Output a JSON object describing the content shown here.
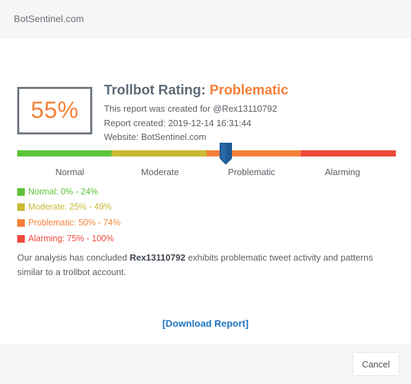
{
  "header": {
    "title": "BotSentinel.com"
  },
  "report": {
    "score": "55%",
    "rating_label": "Trollbot Rating:",
    "rating_value": "Problematic",
    "created_for": "This report was created for @Rex13110792",
    "created_at": "Report created: 2019-12-14 16:31:44",
    "website": "Website: BotSentinel.com"
  },
  "scale": {
    "score_fraction": 0.55,
    "segments": [
      {
        "label": "Normal",
        "color": "#5cc43a"
      },
      {
        "label": "Moderate",
        "color": "#c9b933"
      },
      {
        "label": "Problematic",
        "color": "#f5813a"
      },
      {
        "label": "Alarming",
        "color": "#ef4a3c"
      }
    ],
    "marker_color": "#1e5b96"
  },
  "legend": [
    {
      "text": "Normal: 0% - 24%",
      "color": "#5cc43a"
    },
    {
      "text": "Moderate: 25% - 49%",
      "color": "#c9b933"
    },
    {
      "text": "Problematic: 50% - 74%",
      "color": "#f5813a"
    },
    {
      "text": "Alarming: 75% - 100%",
      "color": "#ef4a3c"
    }
  ],
  "analysis": {
    "prefix": "Our analysis has concluded",
    "account": "Rex13110792",
    "suffix": "exhibits problematic tweet activity and patterns similar to a trollbot account."
  },
  "actions": {
    "download_label": "[Download Report]",
    "cancel_label": "Cancel"
  }
}
